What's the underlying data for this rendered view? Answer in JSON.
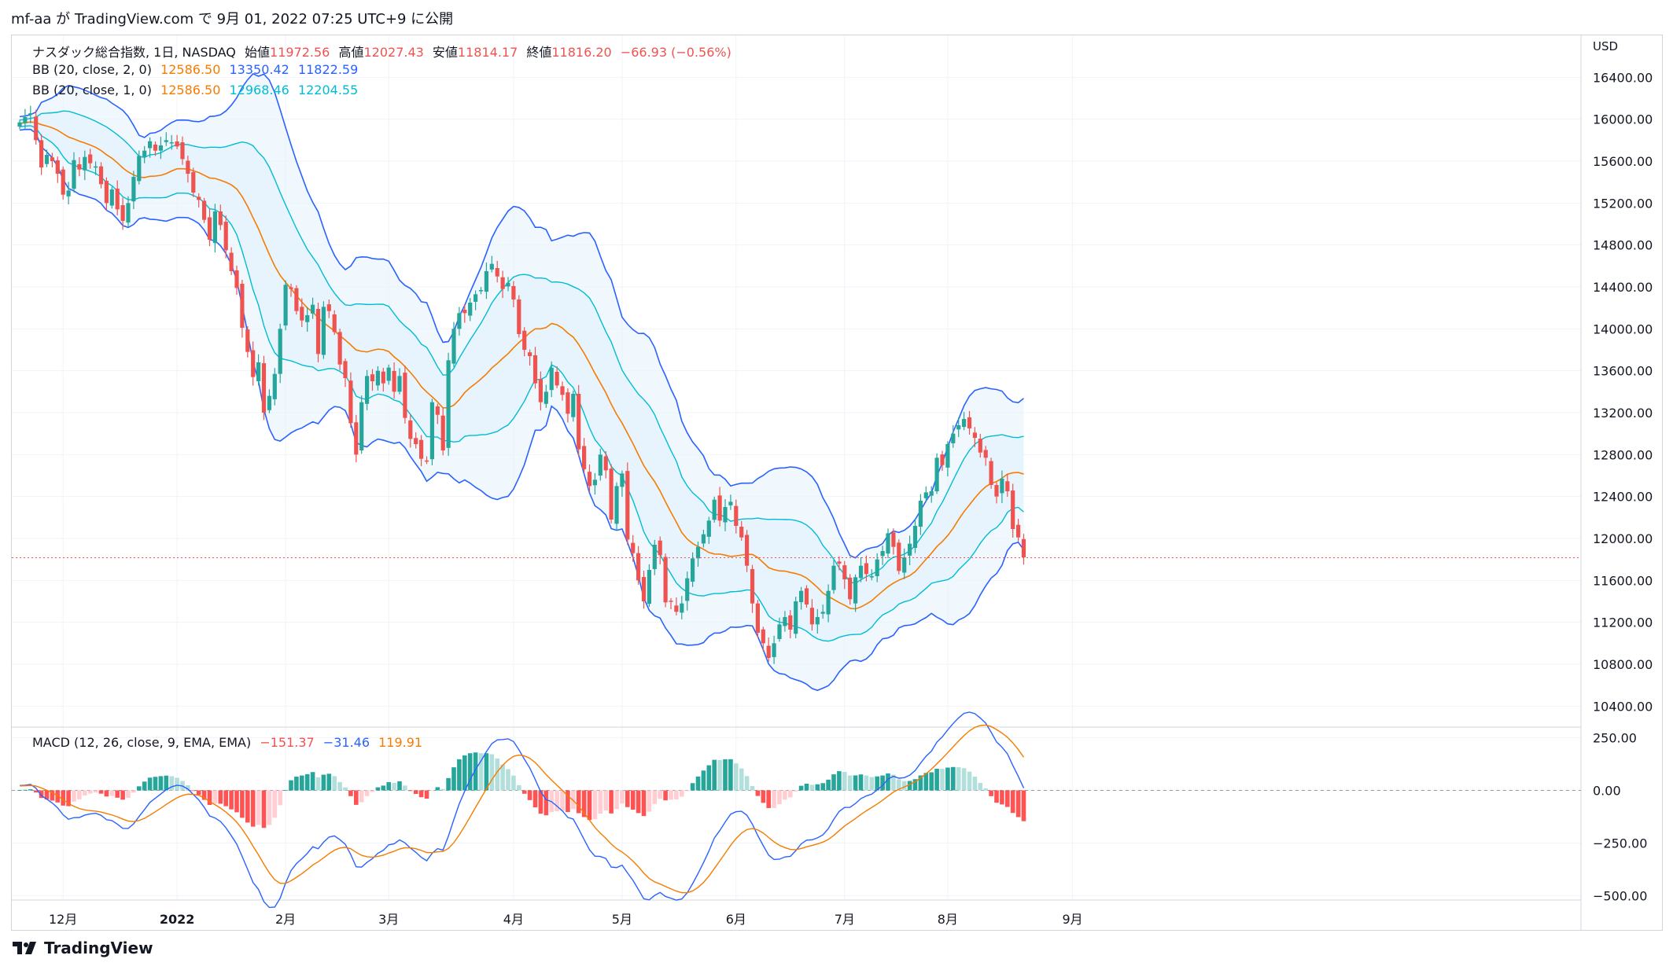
{
  "header": {
    "published": "mf-aa が TradingView.com で 9月 01, 2022 07:25 UTC+9 に公開"
  },
  "legend": {
    "main": {
      "name": "ナスダック総合指数, 1日, NASDAQ",
      "o_label": "始値",
      "o": "11972.56",
      "h_label": "高値",
      "h": "12027.43",
      "l_label": "安値",
      "l": "11814.17",
      "c_label": "終値",
      "c": "11816.20",
      "chg": "−66.93 (−0.56%)"
    },
    "bb2": {
      "name": "BB (20, close, 2, 0)",
      "basis": "12586.50",
      "upper": "13350.42",
      "lower": "11822.59"
    },
    "bb1": {
      "name": "BB (20, close, 1, 0)",
      "basis": "12586.50",
      "upper": "12968.46",
      "lower": "12204.55"
    },
    "macd": {
      "name": "MACD (12, 26, close, 9, EMA, EMA)",
      "hist": "−151.37",
      "macd": "−31.46",
      "signal": "119.91"
    }
  },
  "footer": {
    "brand": "TradingView"
  },
  "chart_data": [
    {
      "type": "candlestick",
      "currency": "USD",
      "ylim": [
        10200,
        16800
      ],
      "price_ticks": [
        16400,
        16000,
        15600,
        15200,
        14800,
        14400,
        14000,
        13600,
        13200,
        12800,
        12400,
        12000,
        11600,
        11200,
        10800,
        10400
      ],
      "price_tick_labels": [
        "16400.00",
        "16000.00",
        "15600.00",
        "15200.00",
        "14800.00",
        "14400.00",
        "14000.00",
        "13600.00",
        "13200.00",
        "12800.00",
        "12400.00",
        "12000.00",
        "11600.00",
        "11200.00",
        "10800.00",
        "10400.00"
      ],
      "last_close": 11816.2,
      "x_labels": [
        {
          "label": "12月",
          "index": 8
        },
        {
          "label": "2022",
          "index": 29
        },
        {
          "label": "2月",
          "index": 49
        },
        {
          "label": "3月",
          "index": 68
        },
        {
          "label": "4月",
          "index": 91
        },
        {
          "label": "5月",
          "index": 111
        },
        {
          "label": "6月",
          "index": 132
        },
        {
          "label": "7月",
          "index": 152
        },
        {
          "label": "8月",
          "index": 171
        },
        {
          "label": "9月",
          "index": 194
        }
      ],
      "closes": [
        15970,
        16020,
        16057,
        15800,
        15540,
        15660,
        15600,
        15480,
        15280,
        15320,
        15610,
        15520,
        15640,
        15580,
        15550,
        15380,
        15200,
        15330,
        15140,
        15030,
        15200,
        15450,
        15650,
        15700,
        15790,
        15700,
        15750,
        15800,
        15780,
        15740,
        15620,
        15480,
        15300,
        15230,
        15040,
        14850,
        15120,
        14990,
        14750,
        14550,
        14390,
        14010,
        13780,
        13540,
        13680,
        13200,
        13360,
        13570,
        14000,
        14420,
        14380,
        14170,
        14080,
        14130,
        14230,
        13760,
        14210,
        14170,
        13970,
        13660,
        13530,
        13100,
        12800,
        13300,
        13550,
        13500,
        13600,
        13480,
        13630,
        13400,
        13550,
        13150,
        12950,
        12900,
        12760,
        12740,
        13300,
        13180,
        12840,
        13700,
        14000,
        14150,
        14150,
        14250,
        14330,
        14370,
        14550,
        14620,
        14500,
        14380,
        14440,
        14280,
        13950,
        13800,
        13740,
        13480,
        13300,
        13400,
        13630,
        13460,
        13370,
        13190,
        13380,
        12850,
        12660,
        12500,
        12560,
        12800,
        12650,
        12180,
        12500,
        12620,
        11990,
        11860,
        11600,
        11400,
        11700,
        11940,
        11840,
        11390,
        11400,
        11300,
        11380,
        11620,
        11810,
        11920,
        12040,
        12170,
        12370,
        12170,
        12300,
        12350,
        12120,
        12010,
        11740,
        11380,
        11100,
        11000,
        10860,
        11000,
        11180,
        11250,
        11130,
        11400,
        11500,
        11370,
        11180,
        11250,
        11300,
        11500,
        11740,
        11760,
        11610,
        11420,
        11630,
        11740,
        11660,
        11640,
        11800,
        11880,
        12050,
        11920,
        11690,
        11820,
        11950,
        12120,
        12360,
        12440,
        12450,
        12770,
        12700,
        12900,
        13000,
        13080,
        13140,
        13050,
        12960,
        12820,
        12770,
        12510,
        12400,
        12570,
        12450,
        12090,
        12010,
        11820
      ]
    },
    {
      "type": "macd",
      "ylim": [
        -520,
        300
      ],
      "ticks": [
        250,
        0,
        -250,
        -500
      ],
      "tick_labels": [
        "250.00",
        "0.00",
        "−250.00",
        "−500.00"
      ],
      "last": {
        "hist": -151.37,
        "macd": -31.46,
        "signal": 119.91
      }
    }
  ],
  "colors": {
    "up": "#26a69a",
    "down": "#ef5350",
    "bb2": "#2962ff",
    "bb1": "#00bcd4",
    "basis": "#f57c00",
    "fill": "#e3f2fd",
    "macd": "#2962ff",
    "signal": "#f57c00"
  }
}
